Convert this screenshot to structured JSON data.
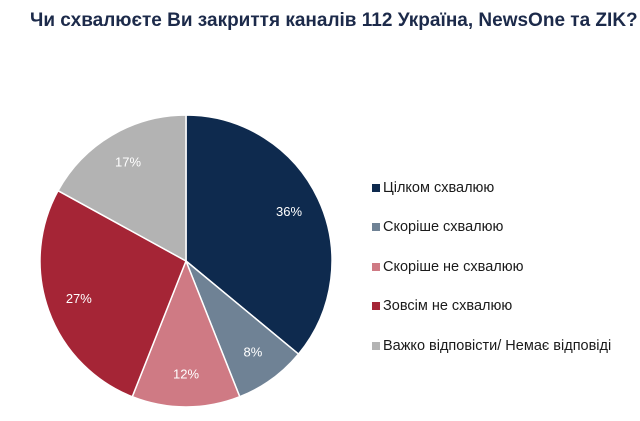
{
  "title": "Чи схвалюєте Ви закриття каналів 112 Україна, NewsOne та ZIK?",
  "chart_data": {
    "type": "pie",
    "title": "Чи схвалюєте Ви закриття каналів 112 Україна, NewsOne та ZIK?",
    "labels": [
      "Цілком схвалюю",
      "Скоріше схвалюю",
      "Скоріше не схвалюю",
      "Зовсім не схвалюю",
      "Важко відповісти/ Немає відповіді"
    ],
    "values": [
      36,
      8,
      12,
      27,
      17
    ],
    "value_labels": [
      "36%",
      "8%",
      "12%",
      "27%",
      "17%"
    ],
    "colors": [
      "#0e2a4e",
      "#6f8295",
      "#cf7a84",
      "#a52536",
      "#b3b3b3"
    ],
    "start": "12 o'clock",
    "direction": "clockwise",
    "legend_position": "right"
  }
}
